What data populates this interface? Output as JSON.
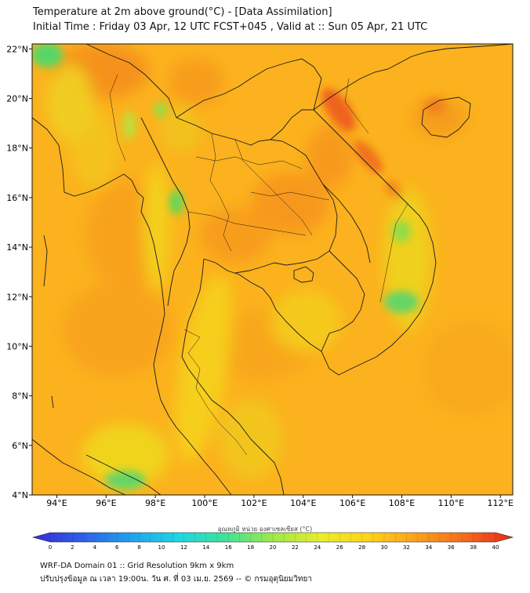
{
  "header": {
    "title": "Temperature at 2m above ground(°C) - [Data Assimilation]",
    "subtitle": "Initial Time : Friday 03 Apr, 12 UTC FCST+045 , Valid at :: Sun 05 Apr, 21 UTC"
  },
  "map": {
    "lon_range": [
      93,
      112.5
    ],
    "lat_range": [
      4,
      22.2
    ],
    "x_ticks": [
      "94°E",
      "96°E",
      "98°E",
      "100°E",
      "102°E",
      "104°E",
      "106°E",
      "108°E",
      "110°E",
      "112°E"
    ],
    "y_ticks": [
      "22°N",
      "20°N",
      "18°N",
      "16°N",
      "14°N",
      "12°N",
      "10°N",
      "8°N",
      "6°N",
      "4°N"
    ],
    "base_color": "#fbb21e"
  },
  "colorbar": {
    "label": "อุณหภูมิ หน่วย องศาเซลเซียส (°C)",
    "ticks": [
      "0",
      "2",
      "4",
      "6",
      "8",
      "10",
      "12",
      "14",
      "16",
      "18",
      "20",
      "22",
      "24",
      "26",
      "28",
      "30",
      "32",
      "34",
      "36",
      "38",
      "40"
    ],
    "min": 0,
    "max": 40,
    "stops": [
      "#3b2bd6",
      "#2e5ee8",
      "#1fa0ee",
      "#1cd6e4",
      "#3ee29a",
      "#9ee84a",
      "#e8ee2a",
      "#ffd21a",
      "#fba01c",
      "#f46a1c",
      "#e82a1c"
    ]
  },
  "footer": {
    "line1": "WRF-DA Domain 01 :: Grid Resolution 9km x 9km",
    "line2": "ปรับปรุงข้อมูล ณ เวลา 19:00น. วัน ศ. ที่ 03 เม.ย. 2569 -- © กรมอุตุนิยมวิทยา"
  }
}
